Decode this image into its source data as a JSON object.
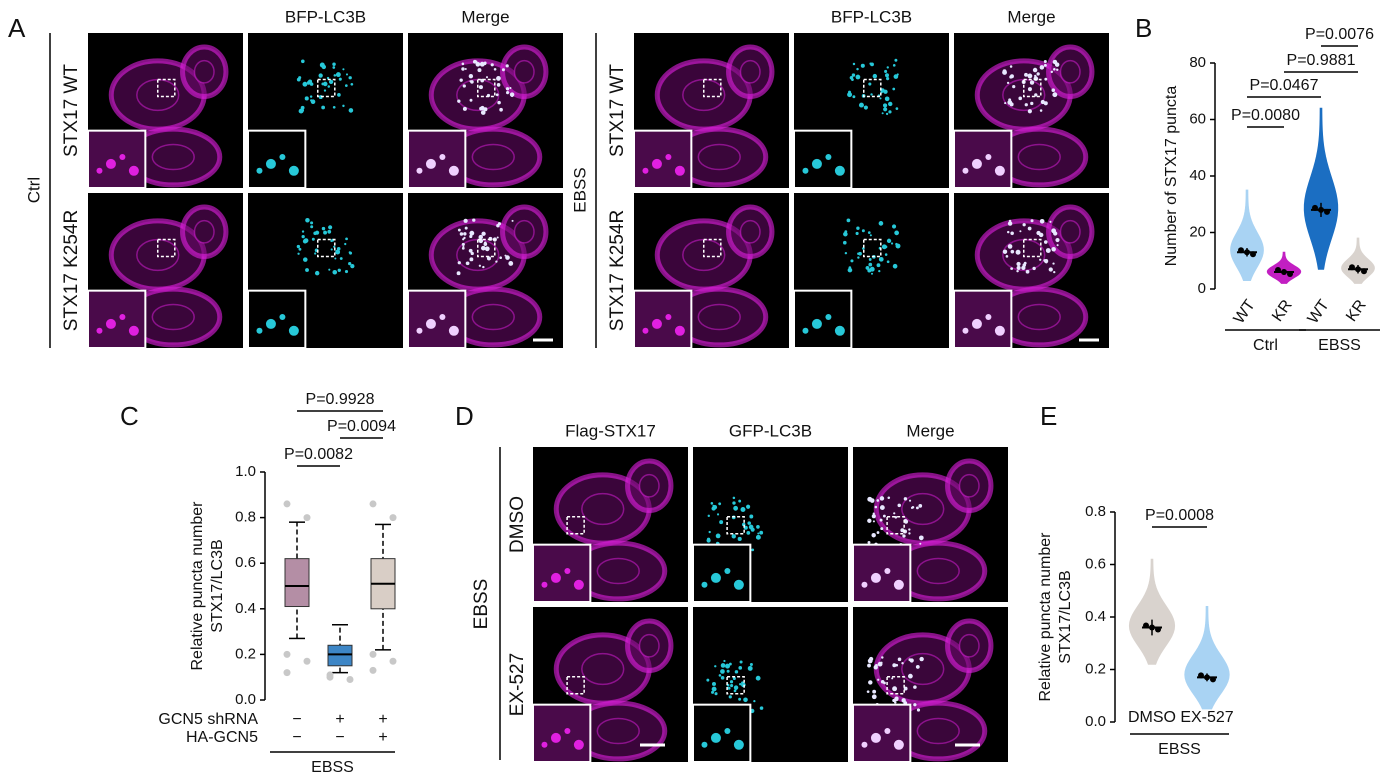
{
  "figure": {
    "A": {
      "label": "A",
      "groups": [
        {
          "condition": "Ctrl",
          "rows": [
            "STX17 WT",
            "STX17 K254R"
          ],
          "headers": [
            "BFP-LC3B",
            "Merge"
          ]
        },
        {
          "condition": "EBSS",
          "rows": [
            "STX17 WT",
            "STX17 K254R"
          ],
          "headers": [
            "BFP-LC3B",
            "Merge"
          ]
        }
      ]
    },
    "D": {
      "label": "D",
      "condition": "EBSS",
      "headers": [
        "Flag-STX17",
        "GFP-LC3B",
        "Merge"
      ],
      "rows": [
        "DMSO",
        "EX-527"
      ]
    }
  },
  "chart_data": [
    {
      "type": "violin",
      "label": "B",
      "ylabel": [
        "Number of STX17 puncta"
      ],
      "categories": [
        "WT",
        "KR",
        "WT",
        "KR"
      ],
      "groups": [
        "Ctrl",
        "EBSS"
      ],
      "colors": [
        "#a9d3f3",
        "#c21fc2",
        "#1b6ec2",
        "#d9d3ce"
      ],
      "values": [
        13,
        6,
        28,
        7
      ],
      "error": [
        1.5,
        1,
        2.5,
        1.5
      ],
      "min": [
        3,
        2,
        7,
        2
      ],
      "max": [
        35,
        13,
        64,
        18
      ],
      "ylim": [
        0,
        80
      ],
      "yticks": [
        0,
        20,
        40,
        60,
        80
      ],
      "annotations": [
        "P=0.0080",
        "P=0.0467",
        "P=0.9881",
        "P=0.0076"
      ]
    },
    {
      "type": "box",
      "label": "C",
      "ylabel": [
        "Relative puncta number",
        "STX17/LC3B"
      ],
      "conditions": [
        {
          "name": "GCN5 shRNA",
          "values": [
            "−",
            "+",
            "+"
          ]
        },
        {
          "name": "HA-GCN5",
          "values": [
            "−",
            "−",
            "+"
          ]
        }
      ],
      "groups": [
        "EBSS"
      ],
      "colors": [
        "#b48ea5",
        "#3d86c6",
        "#d9cec6"
      ],
      "q1": [
        0.41,
        0.15,
        0.4
      ],
      "median": [
        0.5,
        0.2,
        0.51
      ],
      "q3": [
        0.62,
        0.24,
        0.62
      ],
      "whisker_low": [
        0.27,
        0.12,
        0.22
      ],
      "whisker_high": [
        0.78,
        0.33,
        0.77
      ],
      "outliers": [
        [
          0.86,
          0.8,
          0.2,
          0.17,
          0.12
        ],
        [
          0.11,
          0.09,
          0.1
        ],
        [
          0.86,
          0.8,
          0.2,
          0.17,
          0.13
        ]
      ],
      "ylim": [
        0,
        1.0
      ],
      "yticks": [
        {
          "value": 0,
          "label": "0.0"
        },
        {
          "value": 0.2,
          "label": "0.2"
        },
        {
          "value": 0.4,
          "label": "0.4"
        },
        {
          "value": 0.6,
          "label": "0.6"
        },
        {
          "value": 0.8,
          "label": "0.8"
        },
        {
          "value": 1.0,
          "label": "1.0"
        }
      ],
      "annotations": [
        "P=0.0082",
        "P=0.9928",
        "P=0.0094"
      ]
    },
    {
      "type": "violin",
      "label": "E",
      "ylabel": [
        "Relative puncta number",
        "STX17/LC3B"
      ],
      "categories": [
        "DMSO",
        "EX-527"
      ],
      "groups": [
        "EBSS"
      ],
      "colors": [
        "#d9d3ce",
        "#a9d3f3"
      ],
      "values": [
        0.36,
        0.17
      ],
      "error": [
        0.03,
        0.015
      ],
      "min": [
        0.22,
        0.05
      ],
      "max": [
        0.62,
        0.44
      ],
      "ylim": [
        0,
        0.8
      ],
      "yticks": [
        {
          "value": 0,
          "label": "0.0"
        },
        {
          "value": 0.2,
          "label": "0.2"
        },
        {
          "value": 0.4,
          "label": "0.4"
        },
        {
          "value": 0.6,
          "label": "0.6"
        },
        {
          "value": 0.8,
          "label": "0.8"
        }
      ],
      "annotations": [
        "P=0.0008"
      ]
    }
  ]
}
